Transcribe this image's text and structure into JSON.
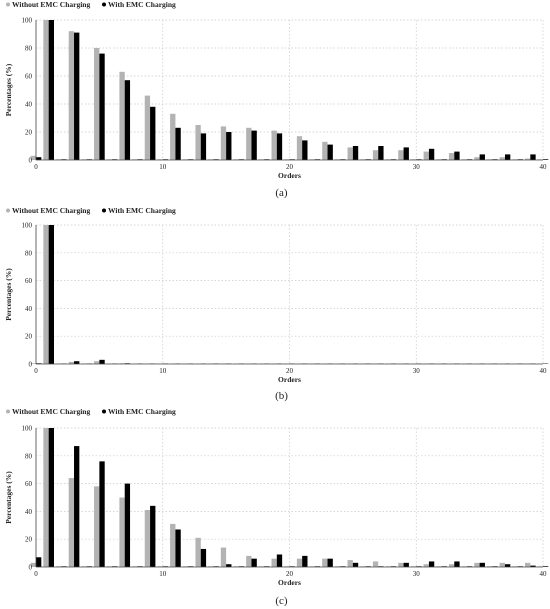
{
  "colors": {
    "without": "#b3b3b3",
    "with": "#000000",
    "grid": "#c8c8c8",
    "axis": "#444444",
    "text": "#222222"
  },
  "chart_data": [
    {
      "type": "bar",
      "panel_label": "(a)",
      "xlabel": "Orders",
      "ylabel": "Percentages (%)",
      "ylim": [
        0,
        100
      ],
      "xlim": [
        0,
        40
      ],
      "xticks": [
        0,
        10,
        20,
        30,
        40
      ],
      "yticks": [
        0,
        20,
        40,
        60,
        80,
        100
      ],
      "grid": true,
      "legend_position": "top-left",
      "x": [
        0,
        1,
        2,
        3,
        4,
        5,
        6,
        7,
        8,
        9,
        10,
        11,
        12,
        13,
        14,
        15,
        16,
        17,
        18,
        19,
        20,
        21,
        22,
        23,
        24,
        25,
        26,
        27,
        28,
        29,
        30,
        31,
        32,
        33,
        34,
        35,
        36,
        37,
        38,
        39,
        40
      ],
      "series": [
        {
          "name": "Without EMC Charging",
          "color_key": "without",
          "values": [
            3,
            100,
            0.5,
            92,
            0.5,
            80,
            0.5,
            63,
            0.5,
            46,
            0.5,
            33,
            0.5,
            25,
            0.5,
            24,
            0.5,
            23,
            0.5,
            21,
            0.5,
            17,
            0.5,
            13,
            0.5,
            9,
            0.5,
            7,
            0.5,
            7,
            0.5,
            6,
            0.5,
            5,
            0.5,
            2,
            0.5,
            2,
            0.5,
            1,
            0.5
          ]
        },
        {
          "name": "With EMC Charging",
          "color_key": "with",
          "values": [
            2,
            100,
            0.5,
            91,
            0.5,
            76,
            0.5,
            57,
            0.5,
            38,
            0.5,
            23,
            0.5,
            19,
            0.5,
            20,
            0.5,
            21,
            0.5,
            19,
            0.5,
            14,
            0.5,
            11,
            0.5,
            10,
            0.5,
            10,
            0.5,
            9,
            0.5,
            8,
            0.5,
            6,
            0.5,
            4,
            0.5,
            4,
            0.5,
            4,
            0.5
          ]
        }
      ]
    },
    {
      "type": "bar",
      "panel_label": "(b)",
      "xlabel": "Orders",
      "ylabel": "Percentages (%)",
      "ylim": [
        0,
        100
      ],
      "xlim": [
        0,
        40
      ],
      "xticks": [
        0,
        10,
        20,
        30,
        40
      ],
      "yticks": [
        0,
        20,
        40,
        60,
        80,
        100
      ],
      "grid": true,
      "legend_position": "top-left",
      "x": [
        0,
        1,
        2,
        3,
        4,
        5,
        6,
        7,
        8,
        9,
        10,
        11,
        12,
        13,
        14,
        15,
        16,
        17,
        18,
        19,
        20,
        21,
        22,
        23,
        24,
        25,
        26,
        27,
        28,
        29,
        30,
        31,
        32,
        33,
        34,
        35,
        36,
        37,
        38,
        39,
        40
      ],
      "series": [
        {
          "name": "Without EMC Charging",
          "color_key": "without",
          "values": [
            0.5,
            100,
            0.3,
            1.5,
            0.3,
            2,
            0.3,
            0.5,
            0.3,
            0.3,
            0.3,
            0.3,
            0.3,
            0.3,
            0.3,
            0.3,
            0.3,
            0.3,
            0.3,
            0.3,
            0.3,
            0.3,
            0.3,
            0.3,
            0.3,
            0.3,
            0.3,
            0.3,
            0.3,
            0.3,
            0.3,
            0.3,
            0.3,
            0.3,
            0.3,
            0.3,
            0.3,
            0.3,
            0.3,
            0.3,
            0.3
          ]
        },
        {
          "name": "With EMC Charging",
          "color_key": "with",
          "values": [
            0.5,
            100,
            0.3,
            2,
            0.3,
            3,
            0.3,
            0.5,
            0.3,
            0.3,
            0.3,
            0.3,
            0.3,
            0.3,
            0.3,
            0.3,
            0.3,
            0.3,
            0.3,
            0.3,
            0.3,
            0.3,
            0.3,
            0.3,
            0.3,
            0.3,
            0.3,
            0.3,
            0.3,
            0.3,
            0.3,
            0.3,
            0.3,
            0.3,
            0.3,
            0.3,
            0.3,
            0.3,
            0.3,
            0.3,
            0.3
          ]
        }
      ]
    },
    {
      "type": "bar",
      "panel_label": "(c)",
      "xlabel": "Orders",
      "ylabel": "Percentages (%)",
      "ylim": [
        0,
        100
      ],
      "xlim": [
        0,
        40
      ],
      "xticks": [
        0,
        10,
        20,
        30,
        40
      ],
      "yticks": [
        0,
        20,
        40,
        60,
        80,
        100
      ],
      "grid": true,
      "legend_position": "top-left",
      "x": [
        0,
        1,
        2,
        3,
        4,
        5,
        6,
        7,
        8,
        9,
        10,
        11,
        12,
        13,
        14,
        15,
        16,
        17,
        18,
        19,
        20,
        21,
        22,
        23,
        24,
        25,
        26,
        27,
        28,
        29,
        30,
        31,
        32,
        33,
        34,
        35,
        36,
        37,
        38,
        39,
        40
      ],
      "series": [
        {
          "name": "Without EMC Charging",
          "color_key": "without",
          "values": [
            3,
            100,
            0.5,
            64,
            0.5,
            58,
            0.5,
            50,
            0.5,
            41,
            0.5,
            31,
            0.5,
            21,
            0.5,
            14,
            0.5,
            8,
            0.5,
            6,
            0.5,
            6,
            0.5,
            6,
            0.5,
            5,
            0.5,
            4,
            0.5,
            3,
            0.5,
            2,
            0.5,
            2,
            0.5,
            3,
            0.5,
            3,
            0.5,
            3,
            0.5
          ]
        },
        {
          "name": "With EMC Charging",
          "color_key": "with",
          "values": [
            7,
            100,
            0.5,
            87,
            0.5,
            76,
            0.5,
            60,
            0.5,
            44,
            0.5,
            27,
            0.5,
            13,
            0.5,
            2,
            0.5,
            6,
            0.5,
            9,
            0.5,
            8,
            0.5,
            6,
            0.5,
            3,
            0.5,
            0.5,
            0.5,
            3,
            0.5,
            4,
            0.5,
            4,
            0.5,
            3,
            0.5,
            2,
            0.5,
            1,
            0.5
          ]
        }
      ]
    }
  ]
}
